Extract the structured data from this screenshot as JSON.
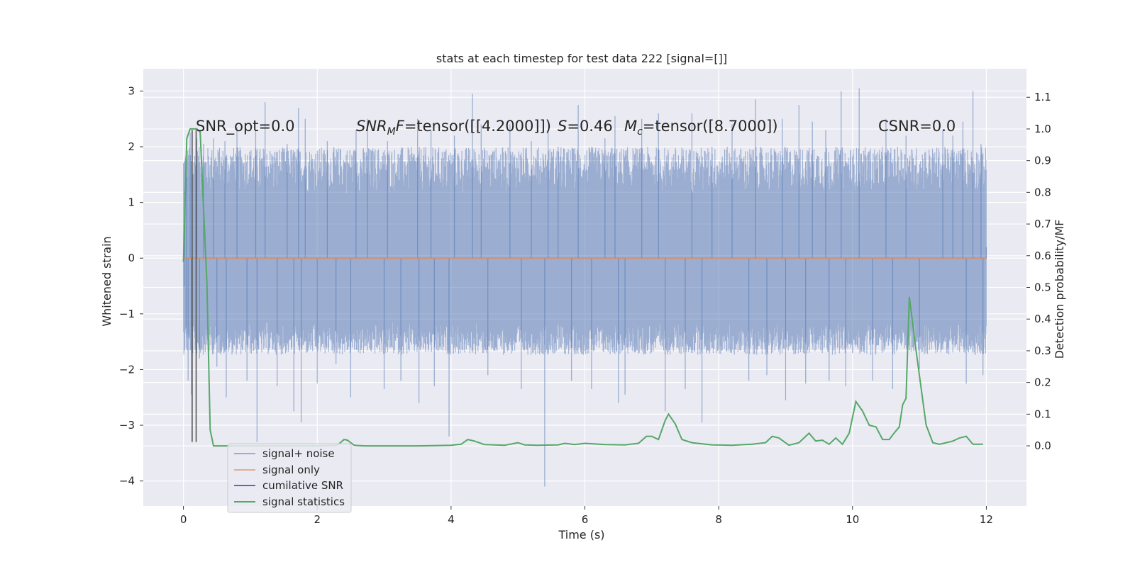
{
  "chart_data": {
    "type": "line",
    "title": "stats at each timestep for test data 222 [signal=[]]",
    "xlabel": "Time (s)",
    "ylabel_left": "Whitened strain",
    "ylabel_right": "Detection probability/MF",
    "xlim": [
      -0.6,
      12.6
    ],
    "ylim_left": [
      -4.45,
      3.4
    ],
    "ylim_right": [
      -0.19,
      1.19
    ],
    "x_ticks": [
      0,
      2,
      4,
      6,
      8,
      10,
      12
    ],
    "x_tick_labels": [
      "0",
      "2",
      "4",
      "6",
      "8",
      "10",
      "12"
    ],
    "y_ticks_left": [
      3,
      2,
      1,
      0,
      -1,
      -2,
      -3,
      -4
    ],
    "y_tick_labels_left": [
      "3",
      "2",
      "1",
      "0",
      "−1",
      "−2",
      "−3",
      "−4"
    ],
    "y_ticks_right": [
      1.1,
      1.0,
      0.9,
      0.8,
      0.7,
      0.6,
      0.5,
      0.4,
      0.3,
      0.2,
      0.1,
      0.0
    ],
    "y_tick_labels_right": [
      "1.1",
      "1.0",
      "0.9",
      "0.8",
      "0.7",
      "0.6",
      "0.5",
      "0.4",
      "0.3",
      "0.2",
      "0.1",
      "0.0"
    ],
    "grid": true,
    "legend_placement": "lower-left",
    "annotations": {
      "snr_opt": "SNR_opt=0.0",
      "snr_mf_prefix": "SNR",
      "snr_mf_sub": "M",
      "snr_mf_mid": "F",
      "snr_mf_value": "=tensor([[4.2000]])",
      "s_label": "S",
      "s_value": "=0.46",
      "mc_label": "M",
      "mc_sub": "c",
      "mc_value": "=tensor([8.7000])",
      "csnr": "CSNR=0.0"
    },
    "series": [
      {
        "name": "signal+ noise",
        "axis": "left",
        "color": "#4c72b0",
        "alpha": 0.5,
        "x_range": [
          0,
          12
        ],
        "envelope": {
          "core_low": -1.15,
          "core_high": 1.15,
          "typical_max": 2.0,
          "typical_min": -1.8
        },
        "spikes": [
          [
            0.01,
            -0.5
          ],
          [
            0.02,
            1.2
          ],
          [
            0.04,
            -1.25
          ],
          [
            0.05,
            1.45
          ],
          [
            0.07,
            -2.2
          ],
          [
            0.1,
            2.25
          ],
          [
            0.12,
            -2.45
          ],
          [
            0.2,
            2.15
          ],
          [
            0.24,
            -1.8
          ],
          [
            0.3,
            2.05
          ],
          [
            0.45,
            2.15
          ],
          [
            0.5,
            -1.95
          ],
          [
            0.62,
            2.1
          ],
          [
            0.64,
            -2.5
          ],
          [
            0.8,
            2.35
          ],
          [
            0.95,
            -2.2
          ],
          [
            1.08,
            2.3
          ],
          [
            1.1,
            -3.3
          ],
          [
            1.22,
            2.8
          ],
          [
            1.4,
            -2.3
          ],
          [
            1.55,
            2.05
          ],
          [
            1.65,
            -2.75
          ],
          [
            1.72,
            2.7
          ],
          [
            1.76,
            -2.95
          ],
          [
            1.82,
            2.5
          ],
          [
            2.0,
            -2.25
          ],
          [
            2.15,
            2.1
          ],
          [
            2.28,
            -1.9
          ],
          [
            2.5,
            -2.5
          ],
          [
            2.58,
            2.3
          ],
          [
            2.75,
            2.5
          ],
          [
            3.0,
            -2.35
          ],
          [
            3.05,
            2.1
          ],
          [
            3.25,
            -2.2
          ],
          [
            3.5,
            2.5
          ],
          [
            3.52,
            -2.6
          ],
          [
            3.7,
            2.3
          ],
          [
            3.75,
            -2.3
          ],
          [
            3.97,
            -3.2
          ],
          [
            4.05,
            2.2
          ],
          [
            4.32,
            2.95
          ],
          [
            4.45,
            2.4
          ],
          [
            4.55,
            -2.1
          ],
          [
            4.88,
            2.4
          ],
          [
            5.05,
            -2.35
          ],
          [
            5.2,
            2.1
          ],
          [
            5.4,
            -4.1
          ],
          [
            5.45,
            2.3
          ],
          [
            5.6,
            2.0
          ],
          [
            5.8,
            -2.2
          ],
          [
            5.9,
            2.75
          ],
          [
            6.1,
            -2.35
          ],
          [
            6.3,
            2.15
          ],
          [
            6.45,
            2.55
          ],
          [
            6.5,
            -2.6
          ],
          [
            6.6,
            -2.45
          ],
          [
            6.85,
            2.5
          ],
          [
            7.1,
            2.6
          ],
          [
            7.2,
            -2.75
          ],
          [
            7.5,
            -2.35
          ],
          [
            7.6,
            2.6
          ],
          [
            7.75,
            -2.95
          ],
          [
            7.9,
            2.0
          ],
          [
            8.2,
            2.4
          ],
          [
            8.45,
            -2.2
          ],
          [
            8.55,
            2.85
          ],
          [
            8.72,
            -2.1
          ],
          [
            8.95,
            2.5
          ],
          [
            9.0,
            -2.55
          ],
          [
            9.2,
            2.75
          ],
          [
            9.3,
            -2.25
          ],
          [
            9.4,
            2.45
          ],
          [
            9.6,
            2.3
          ],
          [
            9.65,
            -2.2
          ],
          [
            9.83,
            3.0
          ],
          [
            9.9,
            -2.3
          ],
          [
            10.1,
            3.05
          ],
          [
            10.3,
            -2.2
          ],
          [
            10.5,
            2.5
          ],
          [
            10.6,
            -2.35
          ],
          [
            10.8,
            2.2
          ],
          [
            11.0,
            -2.0
          ],
          [
            11.35,
            2.3
          ],
          [
            11.5,
            2.2
          ],
          [
            11.65,
            2.45
          ],
          [
            11.7,
            -2.25
          ],
          [
            11.8,
            3.0
          ],
          [
            11.92,
            2.05
          ],
          [
            11.95,
            -2.1
          ],
          [
            12.0,
            0.2
          ]
        ]
      },
      {
        "name": "signal only",
        "axis": "left",
        "color": "#dd8452",
        "x": [
          0,
          12
        ],
        "y": [
          0,
          0
        ]
      },
      {
        "name": "cumilative SNR",
        "axis": "left",
        "color": "#4c72b0",
        "x": [
          0.13,
          0.19
        ],
        "y": [
          -3.3,
          -3.3
        ],
        "note": "vertical marker lines from -3.3 to 2.3"
      },
      {
        "name": "signal statistics",
        "axis": "right",
        "color": "#55a868",
        "x": [
          0,
          0.05,
          0.1,
          0.15,
          0.2,
          0.25,
          0.3,
          0.35,
          0.4,
          0.45,
          0.5,
          0.7,
          1.0,
          1.5,
          2.0,
          2.3,
          2.4,
          2.45,
          2.55,
          2.7,
          3.0,
          3.5,
          4.0,
          4.15,
          4.25,
          4.35,
          4.5,
          4.8,
          5.0,
          5.1,
          5.3,
          5.6,
          5.7,
          5.85,
          6.0,
          6.3,
          6.6,
          6.8,
          6.92,
          7.0,
          7.1,
          7.2,
          7.25,
          7.35,
          7.45,
          7.6,
          7.9,
          8.2,
          8.5,
          8.7,
          8.8,
          8.9,
          9.05,
          9.2,
          9.3,
          9.35,
          9.45,
          9.55,
          9.65,
          9.75,
          9.85,
          9.95,
          10.05,
          10.15,
          10.25,
          10.35,
          10.45,
          10.55,
          10.62,
          10.7,
          10.75,
          10.8,
          10.85,
          10.95,
          11.1,
          11.2,
          11.3,
          11.4,
          11.5,
          11.6,
          11.7,
          11.8,
          11.95
        ],
        "y": [
          0.58,
          0.97,
          1.0,
          1.0,
          1.0,
          0.99,
          0.75,
          0.52,
          0.05,
          0.0,
          0.0,
          0.0,
          0.0,
          0.0,
          0.0,
          0.002,
          0.02,
          0.018,
          0.002,
          0.0,
          0.0,
          0.0,
          0.002,
          0.005,
          0.02,
          0.015,
          0.004,
          0.002,
          0.01,
          0.003,
          0.002,
          0.003,
          0.008,
          0.004,
          0.008,
          0.004,
          0.003,
          0.008,
          0.03,
          0.03,
          0.02,
          0.08,
          0.1,
          0.07,
          0.02,
          0.01,
          0.003,
          0.002,
          0.005,
          0.01,
          0.03,
          0.025,
          0.002,
          0.01,
          0.03,
          0.04,
          0.015,
          0.018,
          0.005,
          0.025,
          0.005,
          0.04,
          0.14,
          0.11,
          0.065,
          0.06,
          0.02,
          0.02,
          0.04,
          0.06,
          0.13,
          0.15,
          0.47,
          0.3,
          0.066,
          0.01,
          0.005,
          0.01,
          0.015,
          0.025,
          0.03,
          0.005,
          0.005
        ]
      }
    ]
  }
}
